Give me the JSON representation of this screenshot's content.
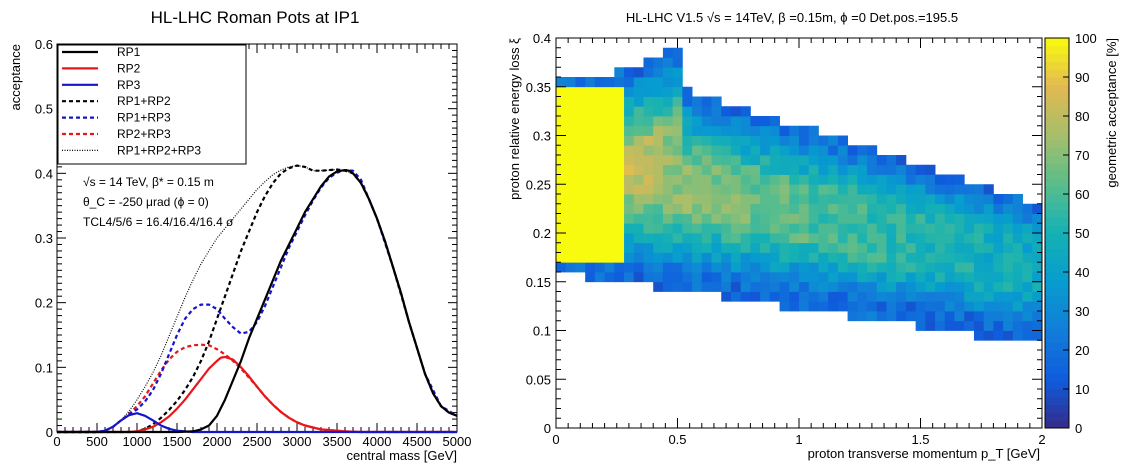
{
  "chart_data": [
    {
      "type": "line",
      "title": "HL-LHC Roman Pots at IP1",
      "xlabel": "central mass [GeV]",
      "ylabel": "acceptance",
      "xlim": [
        0,
        5000
      ],
      "ylim": [
        0,
        0.6
      ],
      "xticks": [
        0,
        500,
        1000,
        1500,
        2000,
        2500,
        3000,
        3500,
        4000,
        4500,
        5000
      ],
      "xtick_labels": [
        "0",
        "500",
        "1000",
        "1500",
        "2000",
        "2500",
        "3000",
        "3500",
        "4000",
        "4500",
        "5000"
      ],
      "yticks": [
        0,
        0.1,
        0.2,
        0.3,
        0.4,
        0.5,
        0.6
      ],
      "ytick_labels": [
        "0",
        "0.1",
        "0.2",
        "0.3",
        "0.4",
        "0.5",
        "0.6"
      ],
      "legend_position": "top-left",
      "annotations": [
        "√s = 14 TeV, β* = 0.15 m",
        "θ_C = -250 μrad (ϕ = 0)",
        "TCL4/5/6 = 16.4/16.4/16.4 σ"
      ],
      "series": [
        {
          "name": "RP1",
          "color": "#000000",
          "style": "solid",
          "x": [
            0,
            1500,
            1700,
            1800,
            1900,
            2000,
            2100,
            2200,
            2300,
            2400,
            2500,
            2600,
            2700,
            2800,
            2900,
            3000,
            3100,
            3200,
            3300,
            3400,
            3500,
            3600,
            3650,
            3700,
            3800,
            3900,
            4000,
            4100,
            4200,
            4300,
            4400,
            4500,
            4600,
            4700,
            4800,
            4900,
            5000
          ],
          "y": [
            0,
            0,
            0.001,
            0.004,
            0.01,
            0.025,
            0.05,
            0.08,
            0.11,
            0.145,
            0.175,
            0.205,
            0.235,
            0.265,
            0.29,
            0.315,
            0.34,
            0.36,
            0.38,
            0.395,
            0.403,
            0.405,
            0.404,
            0.4,
            0.385,
            0.36,
            0.33,
            0.295,
            0.255,
            0.215,
            0.17,
            0.13,
            0.09,
            0.06,
            0.04,
            0.03,
            0.025
          ]
        },
        {
          "name": "RP2",
          "color": "#e8161a",
          "style": "solid",
          "x": [
            0,
            900,
            1000,
            1100,
            1200,
            1300,
            1400,
            1500,
            1600,
            1700,
            1800,
            1900,
            2000,
            2050,
            2100,
            2200,
            2300,
            2400,
            2500,
            2600,
            2700,
            2800,
            2900,
            3000,
            3100,
            3200,
            3300,
            3400,
            3600,
            3800,
            4000,
            5000
          ],
          "y": [
            0,
            0,
            0.001,
            0.004,
            0.008,
            0.015,
            0.024,
            0.036,
            0.05,
            0.066,
            0.082,
            0.098,
            0.11,
            0.115,
            0.116,
            0.112,
            0.1,
            0.086,
            0.07,
            0.055,
            0.042,
            0.031,
            0.022,
            0.015,
            0.01,
            0.007,
            0.004,
            0.003,
            0.001,
            0,
            0,
            0
          ]
        },
        {
          "name": "RP3",
          "color": "#1515cc",
          "style": "solid",
          "x": [
            0,
            500,
            600,
            700,
            800,
            900,
            1000,
            1100,
            1200,
            1300,
            1400,
            1500,
            1600,
            1700,
            1800,
            5000
          ],
          "y": [
            0,
            0,
            0.002,
            0.008,
            0.018,
            0.026,
            0.029,
            0.025,
            0.018,
            0.01,
            0.005,
            0.002,
            0.001,
            0,
            0,
            0
          ]
        },
        {
          "name": "RP1+RP2",
          "color": "#000000",
          "style": "dashed",
          "x": [
            0,
            900,
            1000,
            1100,
            1200,
            1300,
            1400,
            1500,
            1600,
            1700,
            1800,
            1900,
            2000,
            2100,
            2200,
            2300,
            2400,
            2500,
            2600,
            2700,
            2800,
            2900,
            3000,
            3100,
            3200,
            3300,
            3400,
            3500,
            3600,
            3700,
            3800,
            3900,
            4000,
            4100,
            4200,
            4300,
            4400,
            4500,
            4600,
            4700,
            4800,
            4900,
            5000
          ],
          "y": [
            0,
            0,
            0.001,
            0.005,
            0.012,
            0.022,
            0.034,
            0.048,
            0.065,
            0.085,
            0.11,
            0.14,
            0.175,
            0.21,
            0.245,
            0.28,
            0.31,
            0.34,
            0.365,
            0.385,
            0.4,
            0.408,
            0.412,
            0.41,
            0.404,
            0.404,
            0.405,
            0.406,
            0.404,
            0.4,
            0.385,
            0.36,
            0.33,
            0.295,
            0.255,
            0.215,
            0.17,
            0.13,
            0.09,
            0.06,
            0.04,
            0.03,
            0.025
          ]
        },
        {
          "name": "RP1+RP3",
          "color": "#1515cc",
          "style": "dashed",
          "x": [
            0,
            500,
            600,
            700,
            800,
            900,
            1000,
            1100,
            1200,
            1300,
            1400,
            1500,
            1600,
            1700,
            1800,
            1900,
            2000,
            2100,
            2200,
            2300,
            2400,
            2500,
            2600,
            2700,
            2800,
            2900,
            3000,
            3100,
            3200,
            3300,
            3400,
            3500,
            3600,
            3700,
            3800,
            4000,
            4200,
            4400,
            4600,
            4800,
            5000
          ],
          "y": [
            0,
            0,
            0.002,
            0.008,
            0.018,
            0.027,
            0.035,
            0.047,
            0.065,
            0.09,
            0.12,
            0.15,
            0.175,
            0.19,
            0.197,
            0.197,
            0.19,
            0.175,
            0.162,
            0.152,
            0.155,
            0.17,
            0.195,
            0.225,
            0.255,
            0.285,
            0.31,
            0.335,
            0.358,
            0.378,
            0.393,
            0.401,
            0.405,
            0.404,
            0.39,
            0.33,
            0.255,
            0.17,
            0.09,
            0.04,
            0.025
          ]
        },
        {
          "name": "RP2+RP3",
          "color": "#e8161a",
          "style": "dashed",
          "x": [
            0,
            500,
            600,
            700,
            800,
            900,
            1000,
            1100,
            1200,
            1300,
            1400,
            1500,
            1600,
            1700,
            1800,
            1900,
            2000,
            2100,
            2200,
            2300,
            2400,
            2500,
            2600,
            2700,
            2800,
            2900,
            3000,
            3100,
            3200,
            3300,
            3400,
            3600,
            3800,
            4000,
            5000
          ],
          "y": [
            0,
            0,
            0.002,
            0.008,
            0.018,
            0.028,
            0.04,
            0.055,
            0.075,
            0.095,
            0.112,
            0.124,
            0.131,
            0.134,
            0.135,
            0.134,
            0.128,
            0.12,
            0.11,
            0.098,
            0.084,
            0.07,
            0.055,
            0.042,
            0.031,
            0.022,
            0.015,
            0.01,
            0.007,
            0.004,
            0.003,
            0.001,
            0,
            0,
            0
          ]
        },
        {
          "name": "RP1+RP2+RP3",
          "color": "#000000",
          "style": "dotted",
          "x": [
            0,
            500,
            600,
            700,
            800,
            900,
            1000,
            1100,
            1200,
            1300,
            1400,
            1500,
            1600,
            1700,
            1800,
            1900,
            2000,
            2100,
            2200,
            2300,
            2400,
            2500,
            2600,
            2700,
            2800,
            2900,
            3000,
            3100,
            3200,
            3300,
            3400,
            3500,
            3600,
            3700,
            3800,
            3900,
            4000,
            4100,
            4200,
            4300,
            4400,
            4500,
            4600,
            4700,
            4800,
            4900,
            5000
          ],
          "y": [
            0,
            0,
            0.002,
            0.008,
            0.018,
            0.032,
            0.05,
            0.07,
            0.092,
            0.118,
            0.148,
            0.178,
            0.208,
            0.235,
            0.26,
            0.28,
            0.3,
            0.315,
            0.33,
            0.345,
            0.36,
            0.375,
            0.387,
            0.398,
            0.405,
            0.41,
            0.412,
            0.41,
            0.404,
            0.404,
            0.405,
            0.406,
            0.404,
            0.4,
            0.385,
            0.36,
            0.33,
            0.295,
            0.255,
            0.215,
            0.17,
            0.13,
            0.09,
            0.06,
            0.04,
            0.03,
            0.025
          ]
        }
      ]
    },
    {
      "type": "heatmap",
      "title": "HL-LHC V1.5 √s = 14TeV, β  =0.15m, ϕ =0 Det.pos.=195.5",
      "xlabel": "proton transverse momentum p_T [GeV]",
      "ylabel": "proton relative energy loss ξ",
      "colorbar_label": "geometric acceptance [%]",
      "xlim": [
        0,
        2
      ],
      "ylim": [
        0,
        0.4
      ],
      "zlim": [
        0,
        100
      ],
      "xticks": [
        0,
        0.5,
        1,
        1.5,
        2
      ],
      "xtick_labels": [
        "0",
        "0.5",
        "1",
        "1.5",
        "2"
      ],
      "yticks": [
        0,
        0.05,
        0.1,
        0.15,
        0.2,
        0.25,
        0.3,
        0.35,
        0.4
      ],
      "ytick_labels": [
        "0",
        "0.05",
        "0.1",
        "0.15",
        "0.2",
        "0.25",
        "0.3",
        "0.35",
        "0.4"
      ],
      "zticks": [
        0,
        10,
        20,
        30,
        40,
        50,
        60,
        70,
        80,
        90,
        100
      ],
      "ztick_labels": [
        "0",
        "10",
        "20",
        "30",
        "40",
        "50",
        "60",
        "70",
        "80",
        "90",
        "100"
      ],
      "bin_width_x": 0.04,
      "bin_width_y": 0.01,
      "region": {
        "xi_min_at_pt0": 0.17,
        "xi_min_at_pt2": 0.095,
        "xi_max_at_pt0": 0.36,
        "xi_max_at_pt2": 0.23,
        "xi_max_peak": 0.39,
        "xi_max_peak_pt": 0.5,
        "full_acceptance_pt_max": 0.3,
        "full_acceptance_xi_range": [
          0.17,
          0.35
        ]
      }
    }
  ]
}
